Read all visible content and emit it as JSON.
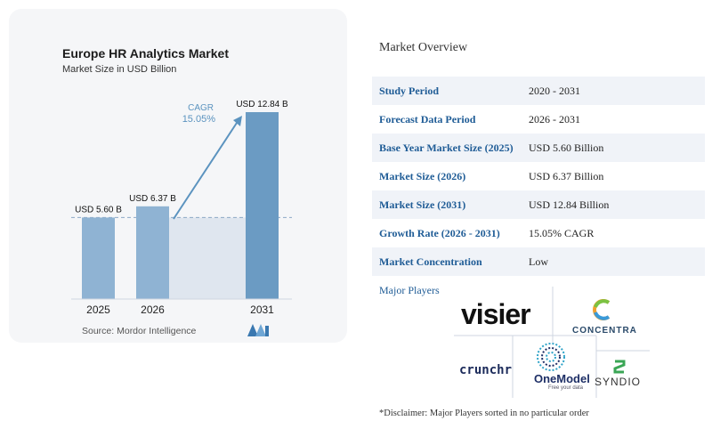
{
  "chart_data": {
    "type": "bar",
    "title": "Europe HR Analytics Market",
    "subtitle": "Market Size in USD Billion",
    "categories": [
      "2025",
      "2026",
      "2031"
    ],
    "values": [
      5.6,
      6.37,
      12.84
    ],
    "value_labels": [
      "USD 5.60 B",
      "USD 6.37 B",
      "USD 12.84 B"
    ],
    "cagr_label": "CAGR",
    "cagr_value": "15.05%",
    "source": "Source: Mordor Intelligence",
    "colors": {
      "bar": "#6b9bc3",
      "bar_light": "#8fb3d3",
      "shade": "#dfe6ef",
      "arrow": "#5b93bf",
      "cagr_text": "#5b93bf",
      "dashed": "#8ca8c5"
    }
  },
  "overview": {
    "title": "Market Overview",
    "rows": [
      {
        "label": "Study Period",
        "value": "2020 - 2031"
      },
      {
        "label": "Forecast Data Period",
        "value": "2026 - 2031"
      },
      {
        "label": "Base Year Market Size (2025)",
        "value": "USD 5.60 Billion"
      },
      {
        "label": "Market Size (2026)",
        "value": "USD 6.37 Billion"
      },
      {
        "label": "Market Size (2031)",
        "value": "USD 12.84 Billion"
      },
      {
        "label": "Growth Rate (2026 - 2031)",
        "value": "15.05% CAGR"
      },
      {
        "label": "Market Concentration",
        "value": "Low"
      }
    ]
  },
  "players": {
    "title": "Major Players",
    "logos": {
      "visier": "visier",
      "concentra": "CONCENTRA",
      "crunchr": "crunchr",
      "onemodel": "OneModel",
      "onemodel_tag": "Free your data",
      "syndio": "SYNDIO"
    }
  },
  "disclaimer": "*Disclaimer: Major Players sorted in no particular order"
}
